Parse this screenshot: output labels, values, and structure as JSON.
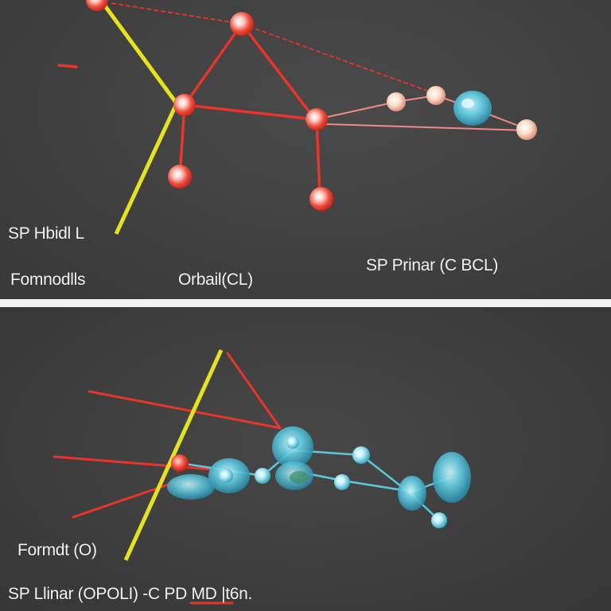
{
  "top_panel": {
    "labels": {
      "hybrid": "SP Hbidl L",
      "formnodils": "Fomnodlls",
      "orbital": "Orbail(CL)",
      "primar": "SP Prinar (C BCL)"
    }
  },
  "bottom_panel": {
    "labels": {
      "formdt": "Formdt (O)",
      "linear": "SP Llinar (OPOLI) -C PD MD |t6n."
    }
  },
  "colors": {
    "bond_red": "#e8342a",
    "bond_yellow": "#e6e21c",
    "orbital_cyan": "#5cc8dc",
    "atom_peach": "#f4c6a6",
    "background": "#404040"
  }
}
